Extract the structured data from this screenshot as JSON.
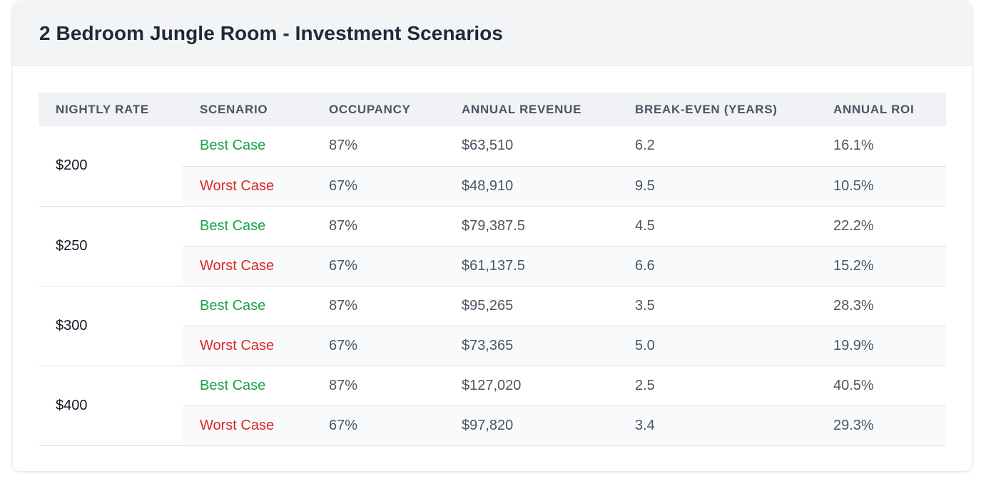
{
  "title": "2 Bedroom Jungle Room - Investment Scenarios",
  "colors": {
    "best": "#16a34a",
    "worst": "#dc2626",
    "header_bg": "#f3f4f6"
  },
  "table": {
    "headers": [
      "NIGHTLY RATE",
      "SCENARIO",
      "OCCUPANCY",
      "ANNUAL REVENUE",
      "BREAK-EVEN (YEARS)",
      "ANNUAL ROI"
    ],
    "groups": [
      {
        "rate": "$200",
        "rows": [
          {
            "scenario": "Best Case",
            "occupancy": "87%",
            "revenue": "$63,510",
            "breakeven": "6.2",
            "roi": "16.1%"
          },
          {
            "scenario": "Worst Case",
            "occupancy": "67%",
            "revenue": "$48,910",
            "breakeven": "9.5",
            "roi": "10.5%"
          }
        ]
      },
      {
        "rate": "$250",
        "rows": [
          {
            "scenario": "Best Case",
            "occupancy": "87%",
            "revenue": "$79,387.5",
            "breakeven": "4.5",
            "roi": "22.2%"
          },
          {
            "scenario": "Worst Case",
            "occupancy": "67%",
            "revenue": "$61,137.5",
            "breakeven": "6.6",
            "roi": "15.2%"
          }
        ]
      },
      {
        "rate": "$300",
        "rows": [
          {
            "scenario": "Best Case",
            "occupancy": "87%",
            "revenue": "$95,265",
            "breakeven": "3.5",
            "roi": "28.3%"
          },
          {
            "scenario": "Worst Case",
            "occupancy": "67%",
            "revenue": "$73,365",
            "breakeven": "5.0",
            "roi": "19.9%"
          }
        ]
      },
      {
        "rate": "$400",
        "rows": [
          {
            "scenario": "Best Case",
            "occupancy": "87%",
            "revenue": "$127,020",
            "breakeven": "2.5",
            "roi": "40.5%"
          },
          {
            "scenario": "Worst Case",
            "occupancy": "67%",
            "revenue": "$97,820",
            "breakeven": "3.4",
            "roi": "29.3%"
          }
        ]
      }
    ]
  }
}
